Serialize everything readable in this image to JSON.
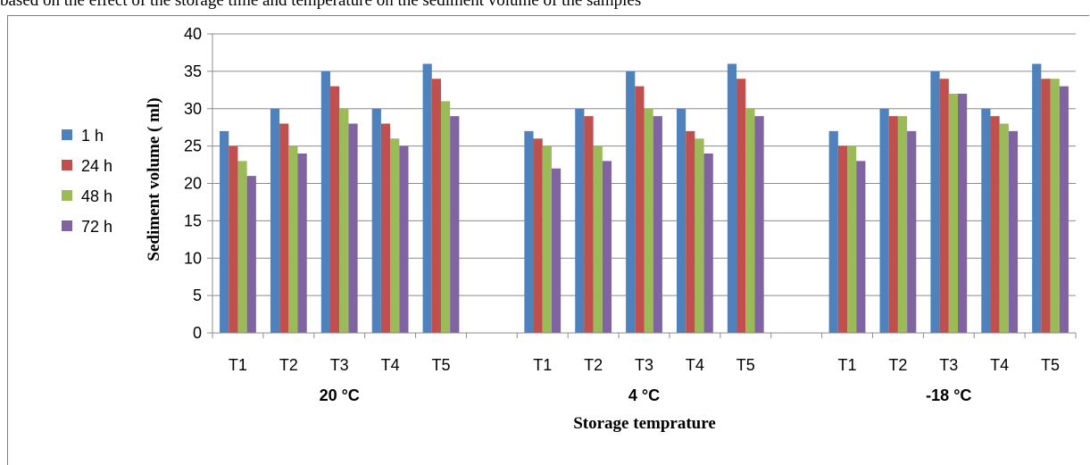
{
  "header": {
    "text": "based on the effect of the storage time and temperature on the sediment volume of the samples"
  },
  "chart_data": {
    "type": "bar",
    "xlabel": "Storage temprature",
    "ylabel": "Sediment volume  ( ml)",
    "ylim": [
      0,
      40
    ],
    "yticks": [
      0,
      5,
      10,
      15,
      20,
      25,
      30,
      35,
      40
    ],
    "grid": true,
    "legend_position": "left",
    "groups": [
      "20 °C",
      "4 °C",
      "-18 °C"
    ],
    "categories": [
      "T1",
      "T2",
      "T3",
      "T4",
      "T5"
    ],
    "colors": [
      "#4f81bd",
      "#c0504d",
      "#9bbb59",
      "#8064a2"
    ],
    "series": [
      {
        "name": "1 h",
        "values": [
          [
            27,
            30,
            35,
            30,
            36
          ],
          [
            27,
            30,
            35,
            30,
            36
          ],
          [
            27,
            30,
            35,
            30,
            36
          ]
        ]
      },
      {
        "name": "24 h",
        "values": [
          [
            25,
            28,
            33,
            28,
            34
          ],
          [
            26,
            29,
            33,
            27,
            34
          ],
          [
            25,
            29,
            34,
            29,
            34
          ]
        ]
      },
      {
        "name": "48 h",
        "values": [
          [
            23,
            25,
            30,
            26,
            31
          ],
          [
            25,
            25,
            30,
            26,
            30
          ],
          [
            25,
            29,
            32,
            28,
            34
          ]
        ]
      },
      {
        "name": "72 h",
        "values": [
          [
            21,
            24,
            28,
            25,
            29
          ],
          [
            22,
            23,
            29,
            24,
            29
          ],
          [
            23,
            27,
            32,
            27,
            33
          ]
        ]
      }
    ]
  }
}
